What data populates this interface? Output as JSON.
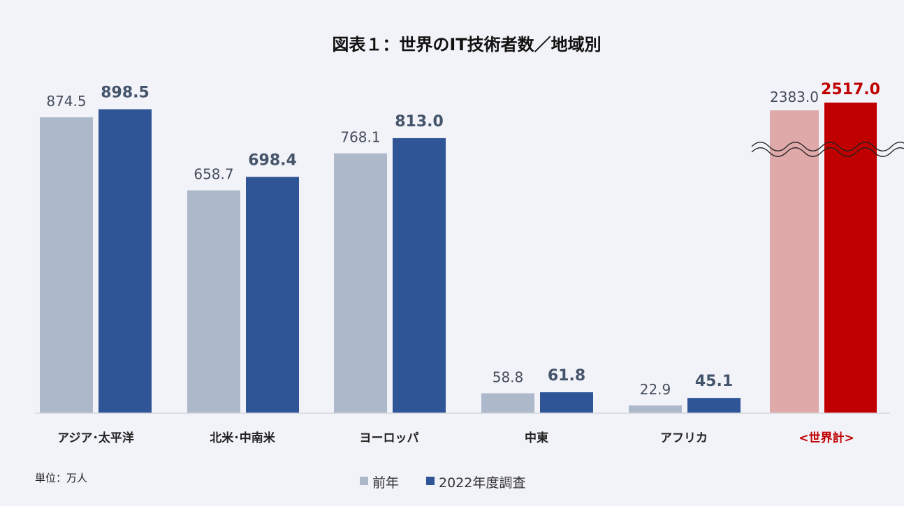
{
  "chart_data": {
    "type": "bar",
    "title": "図表１：世界のIT技術者数／地域別",
    "categories": [
      "アジア･太平洋",
      "北米･中南米",
      "ヨーロッパ",
      "中東",
      "アフリカ",
      "<世界計>"
    ],
    "series": [
      {
        "name": "前年",
        "values": [
          874.5,
          658.7,
          768.1,
          58.8,
          22.9,
          2383.0
        ],
        "labels": [
          "874.5",
          "658.7",
          "768.1",
          "58.8",
          "22.9",
          "2383.0"
        ]
      },
      {
        "name": "2022年度調査",
        "values": [
          898.5,
          698.4,
          813.0,
          61.8,
          45.1,
          2517.0
        ],
        "labels": [
          "898.5",
          "698.4",
          "813.0",
          "61.8",
          "45.1",
          "2517.0"
        ]
      }
    ],
    "unit": "単位：万人",
    "ylim": [
      0,
      1000
    ],
    "axis_break": {
      "category": "<世界計>"
    },
    "legend_position": "bottom",
    "grid": false,
    "colors": {
      "prev": "#adb9cb",
      "curr": "#2f5597",
      "world_prev": "#e0a9a9",
      "world_curr": "#c00000",
      "world_label": "#c00000",
      "background": "#f2f3f8"
    }
  }
}
